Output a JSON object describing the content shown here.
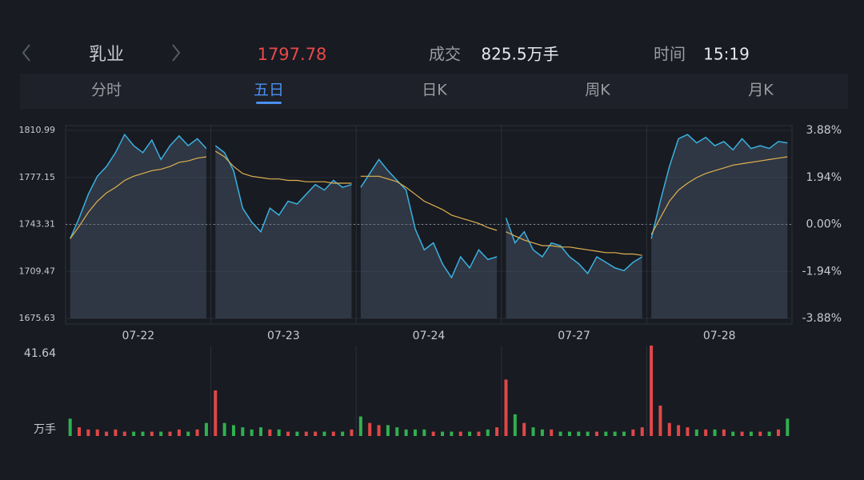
{
  "header": {
    "name": "乳业",
    "price": "1797.78",
    "volume_label": "成交",
    "volume": "825.5万手",
    "time_label": "时间",
    "time": "15:19"
  },
  "tabs": [
    "分时",
    "五日",
    "日K",
    "周K",
    "月K"
  ],
  "active_tab": 1,
  "chart_data": {
    "type": "line",
    "ylim": [
      1675.63,
      1810.99
    ],
    "yticks": [
      1675.63,
      1709.47,
      1743.31,
      1777.15,
      1810.99
    ],
    "prev_close": 1743.31,
    "y2lim": [
      -3.88,
      3.88
    ],
    "y2ticks": [
      {
        "value": -3.88,
        "label": "-3.88%"
      },
      {
        "value": -1.94,
        "label": "-1.94%"
      },
      {
        "value": 0,
        "label": "0.00%"
      },
      {
        "value": 1.94,
        "label": "1.94%"
      },
      {
        "value": 3.88,
        "label": "3.88%"
      }
    ],
    "price_color": "#3ab0e0",
    "avg_color": "#e0b050",
    "up_color": "#e04848",
    "down_color": "#30b050",
    "volume_max": {
      "value": 41.64,
      "label": "41.64"
    },
    "volume_unit": "万手",
    "days": [
      {
        "date": "07-22",
        "price": [
          1733,
          1748,
          1765,
          1778,
          1785,
          1795,
          1808,
          1800,
          1795,
          1804,
          1790,
          1800,
          1807,
          1800,
          1805,
          1798
        ],
        "avg": [
          1733,
          1742,
          1752,
          1760,
          1766,
          1770,
          1775,
          1778,
          1780,
          1782,
          1783,
          1785,
          1788,
          1789,
          1791,
          1792
        ],
        "volume": [
          8,
          4,
          3,
          3,
          2,
          3,
          2,
          2,
          2,
          2,
          2,
          2,
          3,
          2,
          3,
          6
        ]
      },
      {
        "date": "07-23",
        "price": [
          1800,
          1795,
          1782,
          1755,
          1745,
          1738,
          1755,
          1750,
          1760,
          1758,
          1765,
          1772,
          1768,
          1775,
          1770,
          1772
        ],
        "avg": [
          1796,
          1792,
          1785,
          1780,
          1778,
          1777,
          1776,
          1776,
          1775,
          1775,
          1774,
          1774,
          1774,
          1773,
          1773,
          1773
        ],
        "volume": [
          21,
          6,
          5,
          4,
          3,
          4,
          3,
          3,
          2,
          2,
          2,
          2,
          2,
          2,
          2,
          3
        ]
      },
      {
        "date": "07-24",
        "price": [
          1770,
          1780,
          1790,
          1782,
          1775,
          1768,
          1740,
          1725,
          1730,
          1715,
          1705,
          1720,
          1712,
          1725,
          1718,
          1720
        ],
        "avg": [
          1778,
          1778,
          1778,
          1776,
          1774,
          1770,
          1765,
          1760,
          1757,
          1754,
          1750,
          1748,
          1746,
          1744,
          1741,
          1739
        ],
        "volume": [
          9,
          6,
          5,
          5,
          4,
          3,
          3,
          3,
          2,
          2,
          2,
          2,
          2,
          2,
          3,
          4
        ]
      },
      {
        "date": "07-27",
        "price": [
          1748,
          1730,
          1738,
          1725,
          1720,
          1730,
          1728,
          1720,
          1715,
          1708,
          1720,
          1716,
          1712,
          1710,
          1716,
          1720
        ],
        "avg": [
          1738,
          1735,
          1732,
          1730,
          1728,
          1728,
          1727,
          1727,
          1726,
          1725,
          1724,
          1723,
          1723,
          1722,
          1722,
          1721
        ],
        "volume": [
          26,
          10,
          6,
          4,
          3,
          3,
          2,
          2,
          2,
          2,
          2,
          2,
          2,
          2,
          3,
          4
        ]
      },
      {
        "date": "07-28",
        "price": [
          1733,
          1760,
          1785,
          1805,
          1808,
          1802,
          1806,
          1800,
          1803,
          1797,
          1805,
          1798,
          1800,
          1798,
          1803,
          1802
        ],
        "avg": [
          1736,
          1748,
          1760,
          1768,
          1773,
          1777,
          1780,
          1782,
          1784,
          1786,
          1787,
          1788,
          1789,
          1790,
          1791,
          1792
        ],
        "volume": [
          41.64,
          14,
          6,
          5,
          4,
          3,
          3,
          3,
          3,
          2,
          2,
          2,
          2,
          2,
          3,
          8
        ]
      }
    ]
  }
}
